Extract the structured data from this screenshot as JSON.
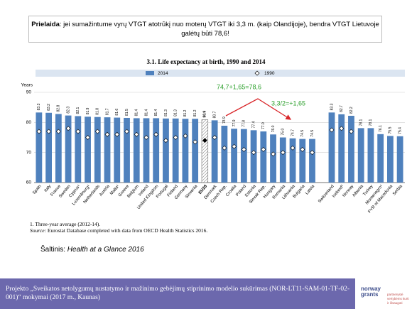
{
  "header": {
    "bold": "Prielaida",
    "text": ": jei sumažintume vyrų VTGT atotrūkį nuo moterų VTGT iki 3,3 m. (kaip Olandijoje), bendra VTGT Lietuvoje galėtų būti 78,6!"
  },
  "chart_data": {
    "type": "bar",
    "title": "3.1. Life expectancy at birth, 1990 and 2014",
    "ylabel": "Years",
    "categories": [
      "Spain",
      "Italy",
      "France",
      "Sweden",
      "Cyprus¹",
      "Luxembourg¹",
      "Netherlands",
      "Austria",
      "Malta¹",
      "Greece",
      "Belgium",
      "Ireland",
      "United Kingdom",
      "Portugal",
      "Finland",
      "Germany",
      "Slovenia",
      "EU28",
      "Denmark",
      "Czech Rep.",
      "Croatia",
      "Poland",
      "Estonia",
      "Slovak Rep.",
      "Hungary",
      "Romania",
      "Lithuania",
      "Bulgaria",
      "Latvia",
      null,
      "Switzerland",
      "Iceland¹",
      "Norway",
      "Albania",
      "Turkey",
      "Montenegro¹",
      "FYR of Macedonia",
      "Serbia"
    ],
    "series": [
      {
        "name": "2014",
        "color": "#4f81bd",
        "values": [
          83.3,
          83.2,
          82.8,
          82.3,
          82.1,
          81.9,
          81.8,
          81.7,
          81.6,
          81.5,
          81.4,
          81.4,
          81.4,
          81.3,
          81.3,
          81.2,
          81.2,
          80.9,
          80.7,
          78.9,
          77.9,
          77.8,
          77.4,
          77.0,
          76.0,
          75.0,
          74.7,
          74.5,
          74.5,
          null,
          83.3,
          82.7,
          82.2,
          78.1,
          78.1,
          76.1,
          75.5,
          75.4
        ],
        "value_labels": [
          "83.3",
          "83.2",
          "82.8",
          "82.3",
          "82.1",
          "81.9",
          "81.8",
          "81.7",
          "81.6",
          "81.5",
          "81.4",
          "81.4",
          "81.4",
          "81.3",
          "81.3",
          "81.2",
          "81.2",
          "80.9",
          "80.7",
          "78.9",
          "77.9",
          "77.8",
          "77.4",
          "77.0",
          "76.0",
          "75.0",
          "74.7",
          "74.5",
          "74.5",
          null,
          "83.3",
          "82.7",
          "82.2",
          "78.1",
          "78.1",
          "76.1",
          "75.5",
          "75.4"
        ]
      },
      {
        "name": "1990",
        "color": "#ffffff",
        "values": [
          77,
          77,
          77,
          78,
          77,
          75,
          77,
          76,
          76,
          77,
          76,
          75,
          76,
          74,
          75,
          75.5,
          73.5,
          74,
          75,
          71.5,
          72,
          71,
          70,
          71,
          69.5,
          70,
          71.5,
          71,
          70,
          null,
          77.5,
          78,
          77,
          null,
          null,
          null,
          null,
          null
        ]
      }
    ],
    "highlight_index": 17,
    "ylim": [
      60,
      90
    ],
    "yticks": [
      60,
      70,
      80,
      90
    ],
    "grid": true,
    "annotations": [
      "74,7+1,65=78,6",
      "3,3/2=+1,65"
    ]
  },
  "footnote": "1. Three-year average (2012-14).",
  "source_label": "Source:",
  "source_text": "Eurostat Database completed with data from OECD Health Statistics 2016.",
  "credit_label": "Šaltinis:",
  "credit_text": "Health at a Glance 2016",
  "footer": "Projekto „Sveikatos netolygumų nustatymo ir mažinimo gebėjimų stiprinimo modelio sukūrimas (NOR-LT11-SAM-01-TF-02-001)“ mokymai (2017 m., Kaunas)",
  "logo": "norway grants",
  "logo_tagline": "partnerystė vertybėms kurti ir išsaugoti"
}
